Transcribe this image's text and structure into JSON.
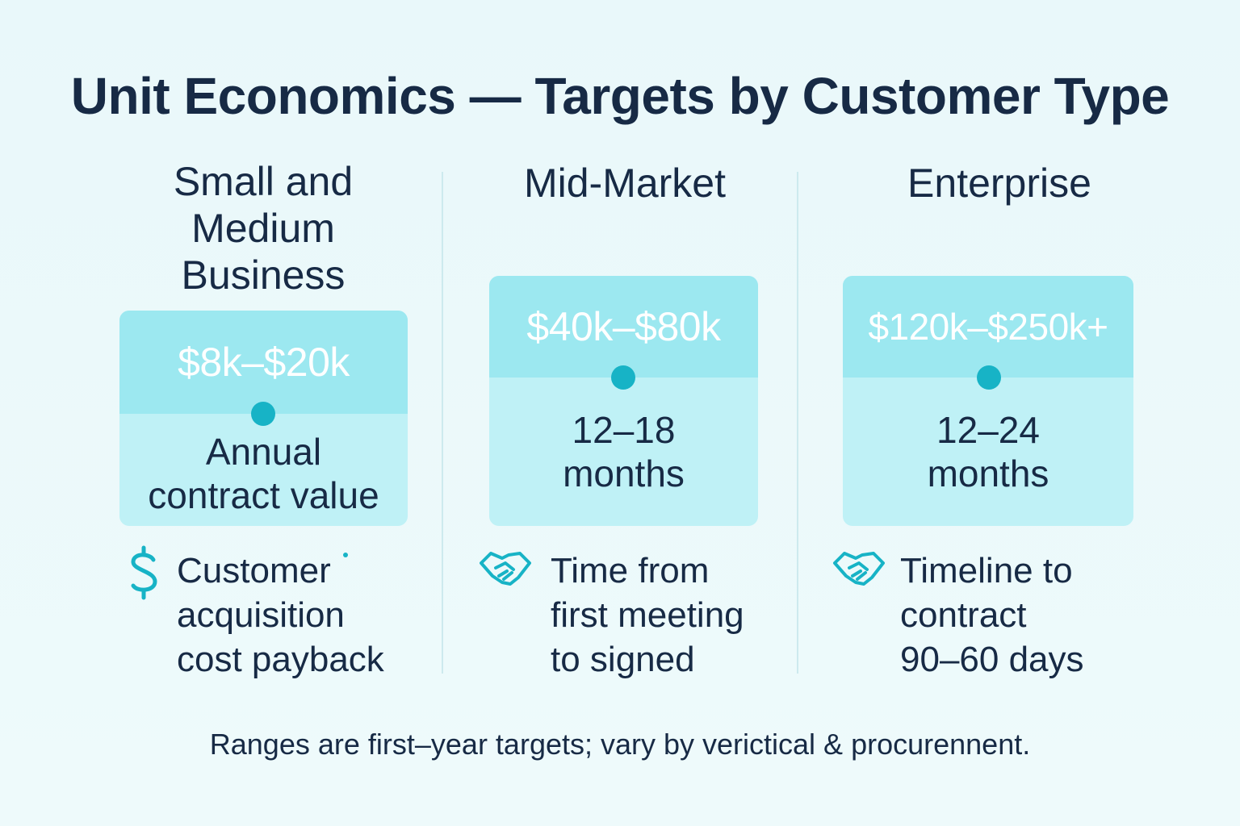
{
  "title": "Unit Economics — Targets by Customer Type",
  "columns": [
    {
      "heading_lines": [
        "Small and",
        "Medium",
        "Business"
      ],
      "value": "$8k–$20k",
      "card_body_lines": [
        "Annual",
        "contract value"
      ],
      "icon": "dollar-icon",
      "caption_lines": [
        "Customer",
        "acquisition",
        "cost payback"
      ]
    },
    {
      "heading_lines": [
        "Mid-Market"
      ],
      "value": "$40k–$80k",
      "card_body_lines": [
        "12–18",
        "months"
      ],
      "icon": "handshake-icon",
      "caption_lines": [
        "Time from",
        "first meeting",
        "to signed"
      ]
    },
    {
      "heading_lines": [
        "Enterprise"
      ],
      "value": "$120k–$250k+",
      "card_body_lines": [
        "12–24",
        "months"
      ],
      "icon": "handshake-icon",
      "caption_lines": [
        "Timeline to",
        "contract",
        "90–60 days"
      ]
    }
  ],
  "footnote": "Ranges are first–year targets; vary by verictical & procurennent.",
  "colors": {
    "accent": "#17b3c6",
    "card_top": "#9ce8f0",
    "card_body": "#bff1f6",
    "text": "#172a45"
  }
}
